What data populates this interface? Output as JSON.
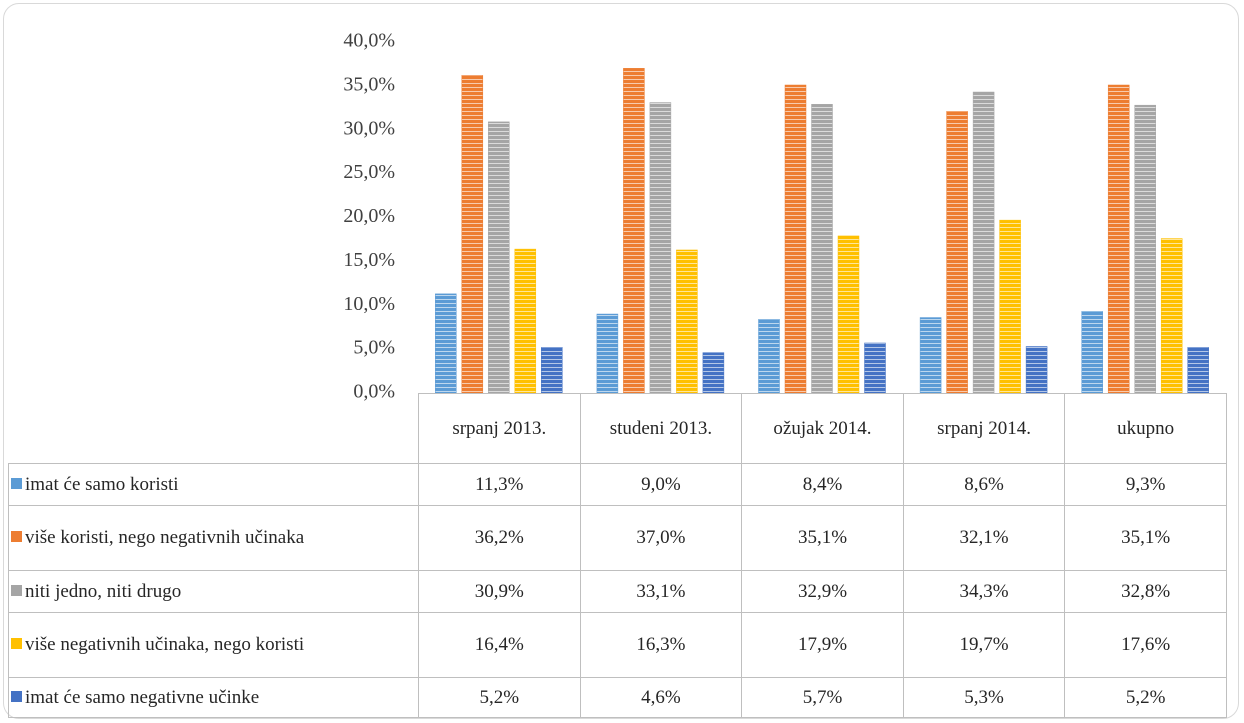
{
  "chart_data": {
    "type": "bar",
    "categories": [
      "srpanj 2013.",
      "studeni 2013.",
      "ožujak 2014.",
      "srpanj 2014.",
      "ukupno"
    ],
    "series": [
      {
        "name": "imat će samo koristi",
        "color": "#5b9bd5",
        "values": [
          11.3,
          9.0,
          8.4,
          8.6,
          9.3
        ],
        "value_labels": [
          "11,3%",
          "9,0%",
          "8,4%",
          "8,6%",
          "9,3%"
        ]
      },
      {
        "name": "više koristi, nego negativnih učinaka",
        "color": "#ed7d31",
        "values": [
          36.2,
          37.0,
          35.1,
          32.1,
          35.1
        ],
        "value_labels": [
          "36,2%",
          "37,0%",
          "35,1%",
          "32,1%",
          "35,1%"
        ]
      },
      {
        "name": "niti jedno, niti drugo",
        "color": "#a5a5a5",
        "values": [
          30.9,
          33.1,
          32.9,
          34.3,
          32.8
        ],
        "value_labels": [
          "30,9%",
          "33,1%",
          "32,9%",
          "34,3%",
          "32,8%"
        ]
      },
      {
        "name": "više negativnih učinaka, nego koristi",
        "color": "#ffc000",
        "values": [
          16.4,
          16.3,
          17.9,
          19.7,
          17.6
        ],
        "value_labels": [
          "16,4%",
          "16,3%",
          "17,9%",
          "19,7%",
          "17,6%"
        ]
      },
      {
        "name": "imat će samo negativne učinke",
        "color": "#4472c4",
        "values": [
          5.2,
          4.6,
          5.7,
          5.3,
          5.2
        ],
        "value_labels": [
          "5,2%",
          "4,6%",
          "5,7%",
          "5,3%",
          "5,2%"
        ]
      }
    ],
    "ylim": [
      0,
      40
    ],
    "yticks": [
      {
        "value": 0,
        "label": "0,0%"
      },
      {
        "value": 5,
        "label": "5,0%"
      },
      {
        "value": 10,
        "label": "10,0%"
      },
      {
        "value": 15,
        "label": "15,0%"
      },
      {
        "value": 20,
        "label": "20,0%"
      },
      {
        "value": 25,
        "label": "25,0%"
      },
      {
        "value": 30,
        "label": "30,0%"
      },
      {
        "value": 35,
        "label": "35,0%"
      },
      {
        "value": 40,
        "label": "40,0%"
      }
    ],
    "grid": false
  }
}
